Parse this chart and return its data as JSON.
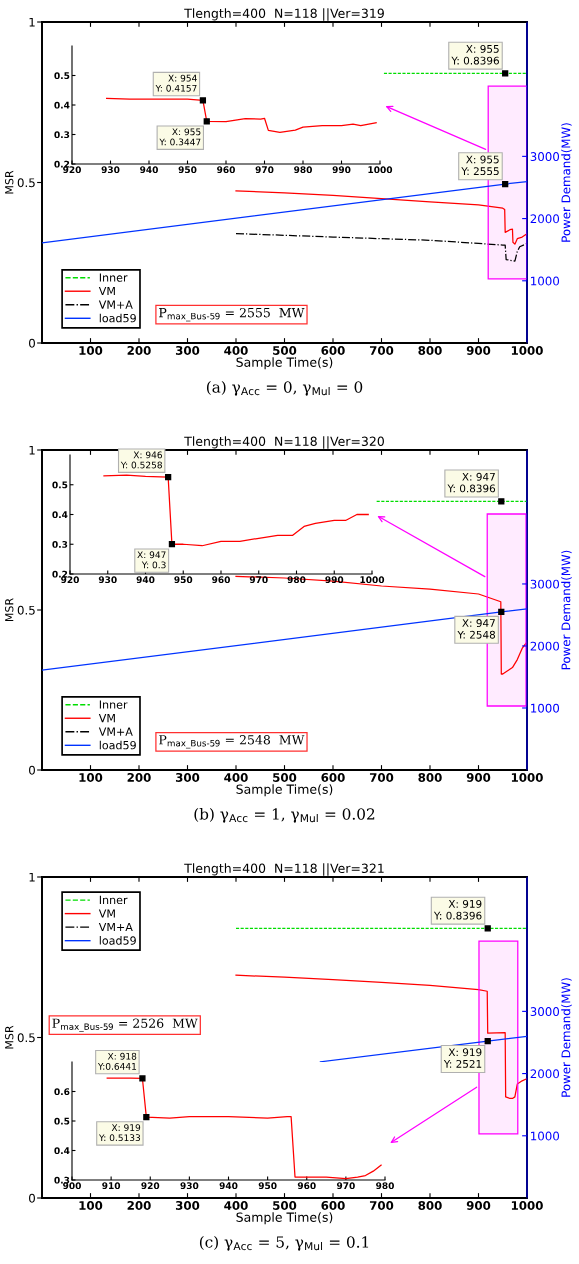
{
  "chart_data": [
    {
      "type": "line",
      "title": "Tlength=400  N=118 ||Ver=319",
      "xlabel": "Sample Time(s)",
      "ylabel": "MSR",
      "y2label": "Power Demand(MW)",
      "xlim": [
        0,
        1000
      ],
      "xticks": [
        100,
        200,
        300,
        400,
        500,
        600,
        700,
        800,
        900,
        1000
      ],
      "ylim": [
        0,
        1
      ],
      "yticks": [
        0,
        0.5,
        1
      ],
      "y2lim": [
        0,
        5160
      ],
      "y2ticks": [
        1000,
        2000,
        3000
      ],
      "legend": "bottom left",
      "grid": false,
      "bands": [
        {
          "axis": "x",
          "from": 920,
          "to": 1000,
          "color": "#ff00ff"
        }
      ],
      "annotations": [
        "P$_{max_Bus-59}$ = 2555  MW",
        "(a) γ$_{Acc}$ = 0, γ$_{Mul}$ = 0"
      ],
      "series": [
        {
          "name": "Inner",
          "color": "#00dd00",
          "line_style": "dashed",
          "x": [
            705,
            955,
            1000
          ],
          "values": [
            0.8396,
            0.8396,
            0.8396
          ],
          "value_labels": [
            null,
            "X: 955\nY: 0.8396",
            null
          ]
        },
        {
          "name": "VM",
          "color": "#ff0000",
          "line_style": "solid",
          "x": [
            400,
            500,
            600,
            700,
            800,
            900,
            950,
            954,
            955,
            965,
            970,
            971,
            975,
            980,
            990,
            1000
          ],
          "values": [
            0.474,
            0.468,
            0.46,
            0.45,
            0.44,
            0.43,
            0.42,
            0.4157,
            0.3447,
            0.353,
            0.355,
            0.314,
            0.308,
            0.325,
            0.33,
            0.34
          ]
        },
        {
          "name": "VM+A",
          "color": "#000000",
          "line_style": "dashdot",
          "x": [
            400,
            600,
            800,
            900,
            950,
            955,
            957,
            975,
            980,
            985,
            1000
          ],
          "values": [
            0.341,
            0.33,
            0.32,
            0.31,
            0.305,
            0.305,
            0.26,
            0.255,
            0.285,
            0.3,
            0.31
          ]
        },
        {
          "name": "load59",
          "color": "#0033ff",
          "line_style": "solid",
          "axis": "y2",
          "x": [
            0,
            955,
            1000
          ],
          "values": [
            1611,
            2555,
            2595
          ],
          "value_labels": [
            null,
            "X: 955\nY: 2555",
            null
          ]
        }
      ]
    },
    {
      "type": "line",
      "xlim": [
        920,
        1000
      ],
      "xticks": [
        920,
        930,
        940,
        950,
        960,
        970,
        980,
        990,
        1000
      ],
      "ylim": [
        0.2,
        0.6
      ],
      "yticks": [
        0.2,
        0.3,
        0.4,
        0.5
      ],
      "series": [
        {
          "color": "#ff0000",
          "line_style": "solid",
          "x": [
            929,
            935,
            940,
            945,
            950,
            954,
            955,
            960,
            965,
            969,
            970,
            971,
            974,
            978,
            980,
            985,
            990,
            993,
            995,
            999
          ],
          "values": [
            0.4225,
            0.42,
            0.42,
            0.42,
            0.42,
            0.4157,
            0.3447,
            0.344,
            0.354,
            0.352,
            0.355,
            0.314,
            0.3075,
            0.315,
            0.325,
            0.33,
            0.33,
            0.335,
            0.33,
            0.34
          ],
          "value_labels": [
            null,
            null,
            null,
            null,
            null,
            "X: 954\nY: 0.4157",
            "X: 955\nY: 0.3447",
            null,
            null,
            null,
            null,
            null,
            null,
            null,
            null,
            null,
            null,
            null,
            null,
            null
          ]
        }
      ]
    },
    {
      "type": "line",
      "title": "Tlength=400  N=118 ||Ver=320",
      "xlabel": "Sample Time(s)",
      "ylabel": "MSR",
      "y2label": "Power Demand(MW)",
      "xlim": [
        0,
        1000
      ],
      "xticks": [
        100,
        200,
        300,
        400,
        500,
        600,
        700,
        800,
        900,
        1000
      ],
      "ylim": [
        0,
        1
      ],
      "yticks": [
        0,
        0.5,
        1
      ],
      "y2lim": [
        0,
        5160
      ],
      "y2ticks": [
        1000,
        2000,
        3000
      ],
      "legend": "bottom left",
      "grid": false,
      "bands": [
        {
          "axis": "x",
          "from": 918,
          "to": 998,
          "color": "#ff00ff"
        }
      ],
      "annotations": [
        "P$_{max_Bus-59}$ = 2548  MW",
        "(b) γ$_{Acc}$ = 1, γ$_{Mul}$ = 0.02"
      ],
      "series": [
        {
          "name": "Inner",
          "color": "#00dd00",
          "line_style": "dashed",
          "x": [
            690,
            947,
            1000
          ],
          "values": [
            0.8396,
            0.8396,
            0.8396
          ],
          "value_labels": [
            null,
            "X: 947\nY: 0.8396",
            null
          ]
        },
        {
          "name": "VM",
          "color": "#ff0000",
          "line_style": "solid",
          "x": [
            400,
            500,
            600,
            700,
            800,
            900,
            946,
            947,
            950,
            960,
            970,
            980,
            990,
            1000
          ],
          "values": [
            0.605,
            0.6,
            0.59,
            0.575,
            0.565,
            0.55,
            0.5258,
            0.3,
            0.3,
            0.31,
            0.32,
            0.345,
            0.38,
            0.4
          ]
        },
        {
          "name": "VM+A",
          "color": "#000000",
          "line_style": "dashdot"
        },
        {
          "name": "load59",
          "color": "#0033ff",
          "line_style": "solid",
          "axis": "y2",
          "x": [
            0,
            947,
            1000
          ],
          "values": [
            1611,
            2548,
            2600
          ],
          "value_labels": [
            null,
            "X: 947\nY: 2548",
            null
          ]
        }
      ]
    },
    {
      "type": "line",
      "xlim": [
        920,
        1000
      ],
      "xticks": [
        920,
        930,
        940,
        950,
        960,
        970,
        980,
        990,
        1000
      ],
      "ylim": [
        0.2,
        0.6
      ],
      "yticks": [
        0.2,
        0.3,
        0.4,
        0.5
      ],
      "series": [
        {
          "color": "#ff0000",
          "line_style": "solid",
          "x": [
            929,
            935,
            940,
            946,
            947,
            950,
            955,
            960,
            965,
            970,
            975,
            979,
            982,
            985,
            990,
            993,
            996,
            999
          ],
          "values": [
            0.53,
            0.532,
            0.528,
            0.5258,
            0.3,
            0.3,
            0.295,
            0.31,
            0.31,
            0.32,
            0.33,
            0.33,
            0.36,
            0.37,
            0.38,
            0.38,
            0.4,
            0.4
          ],
          "value_labels": [
            null,
            null,
            null,
            "X: 946\nY: 0.5258",
            "X: 947\nY: 0.3",
            null,
            null,
            null,
            null,
            null,
            null,
            null,
            null,
            null,
            null,
            null,
            null,
            null
          ]
        }
      ]
    },
    {
      "type": "line",
      "title": "Tlength=400  N=118 ||Ver=321",
      "xlabel": "Sample Time(s)",
      "ylabel": "MSR",
      "y2label": "Power Demand(MW)",
      "xlim": [
        0,
        1000
      ],
      "xticks": [
        100,
        200,
        300,
        400,
        500,
        600,
        700,
        800,
        900,
        1000
      ],
      "ylim": [
        0,
        1
      ],
      "yticks": [
        0,
        0.5,
        1
      ],
      "y2lim": [
        0,
        5160
      ],
      "y2ticks": [
        1000,
        2000,
        3000
      ],
      "legend": "top left",
      "grid": false,
      "bands": [
        {
          "axis": "x",
          "from": 901,
          "to": 981,
          "color": "#ff00ff"
        }
      ],
      "annotations": [
        "P$_{max_Bus-59}$ = 2526  MW",
        "(c) γ$_{Acc}$ = 5, γ$_{Mul}$ = 0.1"
      ],
      "series": [
        {
          "name": "Inner",
          "color": "#00dd00",
          "line_style": "dashed",
          "x": [
            400,
            919,
            1000
          ],
          "values": [
            0.8396,
            0.8396,
            0.8396
          ],
          "value_labels": [
            null,
            "X: 919\nY: 0.8396",
            null
          ]
        },
        {
          "name": "VM",
          "color": "#ff0000",
          "line_style": "solid",
          "x": [
            400,
            500,
            600,
            700,
            800,
            900,
            918,
            919,
            955,
            956,
            965,
            970,
            975,
            980,
            990,
            1000
          ],
          "values": [
            0.694,
            0.688,
            0.68,
            0.672,
            0.662,
            0.649,
            0.6441,
            0.5133,
            0.515,
            0.315,
            0.31,
            0.31,
            0.315,
            0.355,
            0.365,
            0.372
          ]
        },
        {
          "name": "VM+A",
          "color": "#000000",
          "line_style": "dashdot"
        },
        {
          "name": "load59",
          "color": "#0033ff",
          "line_style": "solid",
          "axis": "y2",
          "x": [
            574,
            919,
            1000
          ],
          "values": [
            2188,
            2521,
            2599
          ],
          "value_labels": [
            null,
            "X: 919\nY: 2521",
            null
          ]
        }
      ]
    },
    {
      "type": "line",
      "xlim": [
        900,
        980
      ],
      "xticks": [
        900,
        910,
        920,
        930,
        940,
        950,
        960,
        970,
        980
      ],
      "ylim": [
        0.3,
        0.7
      ],
      "yticks": [
        0.3,
        0.4,
        0.5,
        0.6
      ],
      "series": [
        {
          "color": "#ff0000",
          "line_style": "solid",
          "x": [
            909,
            915,
            918,
            919,
            925,
            930,
            940,
            950,
            955,
            956,
            957,
            960,
            965,
            970,
            973,
            975,
            977,
            979
          ],
          "values": [
            0.645,
            0.645,
            0.6441,
            0.5133,
            0.51,
            0.515,
            0.515,
            0.51,
            0.515,
            0.515,
            0.31,
            0.31,
            0.31,
            0.305,
            0.31,
            0.315,
            0.33,
            0.35
          ],
          "value_labels": [
            null,
            null,
            "X: 918\nY:0.6441",
            "X: 919\nY: 0.5133",
            null,
            null,
            null,
            null,
            null,
            null,
            null,
            null,
            null,
            null,
            null,
            null,
            null,
            null
          ]
        }
      ]
    }
  ]
}
